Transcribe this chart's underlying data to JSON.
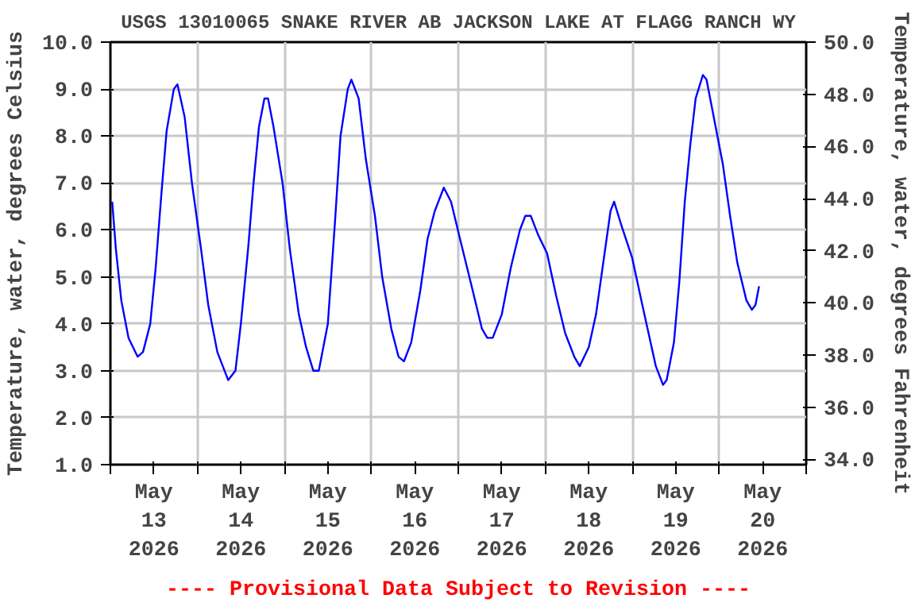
{
  "chart_data": {
    "type": "line",
    "title": "USGS 13010065 SNAKE RIVER AB JACKSON LAKE AT FLAGG RANCH WY",
    "ylabel": "Temperature, water, degrees Celsius",
    "y2label": "Temperature, water, degrees Fahrenheit",
    "annotations": [
      "---- Provisional Data Subject to Revision ----"
    ],
    "x": [
      "2026-05-13T00:30",
      "2026-05-13T01:30",
      "2026-05-13T03:00",
      "2026-05-13T05:00",
      "2026-05-13T07:30",
      "2026-05-13T09:00",
      "2026-05-13T11:00",
      "2026-05-13T12:30",
      "2026-05-13T14:00",
      "2026-05-13T15:30",
      "2026-05-13T17:30",
      "2026-05-13T18:30",
      "2026-05-13T20:30",
      "2026-05-13T22:30",
      "2026-05-14T01:00",
      "2026-05-14T03:00",
      "2026-05-14T05:30",
      "2026-05-14T08:30",
      "2026-05-14T10:30",
      "2026-05-14T12:00",
      "2026-05-14T14:00",
      "2026-05-14T15:30",
      "2026-05-14T17:00",
      "2026-05-14T18:30",
      "2026-05-14T19:30",
      "2026-05-14T21:00",
      "2026-05-14T23:30",
      "2026-05-15T01:30",
      "2026-05-15T04:00",
      "2026-05-15T06:00",
      "2026-05-15T08:00",
      "2026-05-15T09:30",
      "2026-05-15T12:00",
      "2026-05-15T14:00",
      "2026-05-15T15:30",
      "2026-05-15T17:30",
      "2026-05-15T18:30",
      "2026-05-15T20:30",
      "2026-05-15T22:30",
      "2026-05-16T01:00",
      "2026-05-16T03:00",
      "2026-05-16T05:30",
      "2026-05-16T07:30",
      "2026-05-16T09:00",
      "2026-05-16T11:00",
      "2026-05-16T13:30",
      "2026-05-16T15:30",
      "2026-05-16T17:30",
      "2026-05-16T20:00",
      "2026-05-16T22:00",
      "2026-05-17T00:30",
      "2026-05-17T04:00",
      "2026-05-17T06:30",
      "2026-05-17T08:00",
      "2026-05-17T09:30",
      "2026-05-17T12:00",
      "2026-05-17T14:30",
      "2026-05-17T17:00",
      "2026-05-17T18:30",
      "2026-05-17T20:00",
      "2026-05-17T22:00",
      "2026-05-18T00:30",
      "2026-05-18T03:00",
      "2026-05-18T05:30",
      "2026-05-18T08:00",
      "2026-05-18T09:30",
      "2026-05-18T12:00",
      "2026-05-18T14:00",
      "2026-05-18T16:00",
      "2026-05-18T18:00",
      "2026-05-18T19:00",
      "2026-05-18T21:00",
      "2026-05-19T00:00",
      "2026-05-19T02:30",
      "2026-05-19T04:30",
      "2026-05-19T06:30",
      "2026-05-19T08:30",
      "2026-05-19T09:30",
      "2026-05-19T11:30",
      "2026-05-19T13:00",
      "2026-05-19T14:30",
      "2026-05-19T16:00",
      "2026-05-19T17:30",
      "2026-05-19T19:30",
      "2026-05-19T20:30",
      "2026-05-19T22:30",
      "2026-05-20T01:00",
      "2026-05-20T03:00",
      "2026-05-20T05:00",
      "2026-05-20T07:30",
      "2026-05-20T09:00",
      "2026-05-20T10:00",
      "2026-05-20T11:00"
    ],
    "series": [
      {
        "color": "#0000ff",
        "values": [
          6.6,
          5.6,
          4.5,
          3.7,
          3.3,
          3.4,
          4.0,
          5.2,
          6.7,
          8.1,
          9.0,
          9.1,
          8.4,
          7.0,
          5.6,
          4.4,
          3.4,
          2.8,
          3.0,
          4.0,
          5.6,
          7.0,
          8.2,
          8.8,
          8.8,
          8.2,
          7.0,
          5.6,
          4.2,
          3.5,
          3.0,
          3.0,
          4.0,
          6.2,
          8.0,
          9.0,
          9.2,
          8.8,
          7.5,
          6.3,
          5.0,
          3.9,
          3.3,
          3.2,
          3.6,
          4.7,
          5.8,
          6.4,
          6.9,
          6.6,
          5.8,
          4.7,
          3.9,
          3.7,
          3.7,
          4.2,
          5.2,
          6.0,
          6.3,
          6.3,
          5.9,
          5.5,
          4.6,
          3.8,
          3.3,
          3.1,
          3.5,
          4.2,
          5.3,
          6.4,
          6.6,
          6.1,
          5.4,
          4.5,
          3.8,
          3.1,
          2.7,
          2.8,
          3.6,
          4.9,
          6.6,
          7.8,
          8.8,
          9.3,
          9.2,
          8.4,
          7.4,
          6.3,
          5.3,
          4.5,
          4.3,
          4.4,
          4.8
        ]
      }
    ],
    "xlim": [
      "2026-05-13T00:00",
      "2026-05-21T00:00"
    ],
    "xticks": [
      {
        "value": "2026-05-13T00:00",
        "label": null
      },
      {
        "value": "2026-05-13T12:00",
        "label": "May\n13\n2026"
      },
      {
        "value": "2026-05-14T00:00",
        "label": null
      },
      {
        "value": "2026-05-14T12:00",
        "label": "May\n14\n2026"
      },
      {
        "value": "2026-05-15T00:00",
        "label": null
      },
      {
        "value": "2026-05-15T12:00",
        "label": "May\n15\n2026"
      },
      {
        "value": "2026-05-16T00:00",
        "label": null
      },
      {
        "value": "2026-05-16T12:00",
        "label": "May\n16\n2026"
      },
      {
        "value": "2026-05-17T00:00",
        "label": null
      },
      {
        "value": "2026-05-17T12:00",
        "label": "May\n17\n2026"
      },
      {
        "value": "2026-05-18T00:00",
        "label": null
      },
      {
        "value": "2026-05-18T12:00",
        "label": "May\n18\n2026"
      },
      {
        "value": "2026-05-19T00:00",
        "label": null
      },
      {
        "value": "2026-05-19T12:00",
        "label": "May\n19\n2026"
      },
      {
        "value": "2026-05-20T00:00",
        "label": null
      },
      {
        "value": "2026-05-20T12:00",
        "label": "May\n20\n2026"
      },
      {
        "value": "2026-05-21T00:00",
        "label": null
      }
    ],
    "ylim": [
      1,
      10
    ],
    "yticks": [
      {
        "value": 1,
        "label": "1.0"
      },
      {
        "value": 2,
        "label": "2.0"
      },
      {
        "value": 3,
        "label": "3.0"
      },
      {
        "value": 4,
        "label": "4.0"
      },
      {
        "value": 5,
        "label": "5.0"
      },
      {
        "value": 6,
        "label": "6.0"
      },
      {
        "value": 7,
        "label": "7.0"
      },
      {
        "value": 8,
        "label": "8.0"
      },
      {
        "value": 9,
        "label": "9.0"
      },
      {
        "value": 10,
        "label": "10.0"
      }
    ],
    "y2lim": [
      33.8,
      50
    ],
    "y2ticks": [
      {
        "value": 34,
        "label": "34.0"
      },
      {
        "value": 36,
        "label": "36.0"
      },
      {
        "value": 38,
        "label": "38.0"
      },
      {
        "value": 40,
        "label": "40.0"
      },
      {
        "value": 42,
        "label": "42.0"
      },
      {
        "value": 44,
        "label": "44.0"
      },
      {
        "value": 46,
        "label": "46.0"
      },
      {
        "value": 48,
        "label": "48.0"
      },
      {
        "value": 50,
        "label": "50.0"
      }
    ],
    "grid": true
  }
}
